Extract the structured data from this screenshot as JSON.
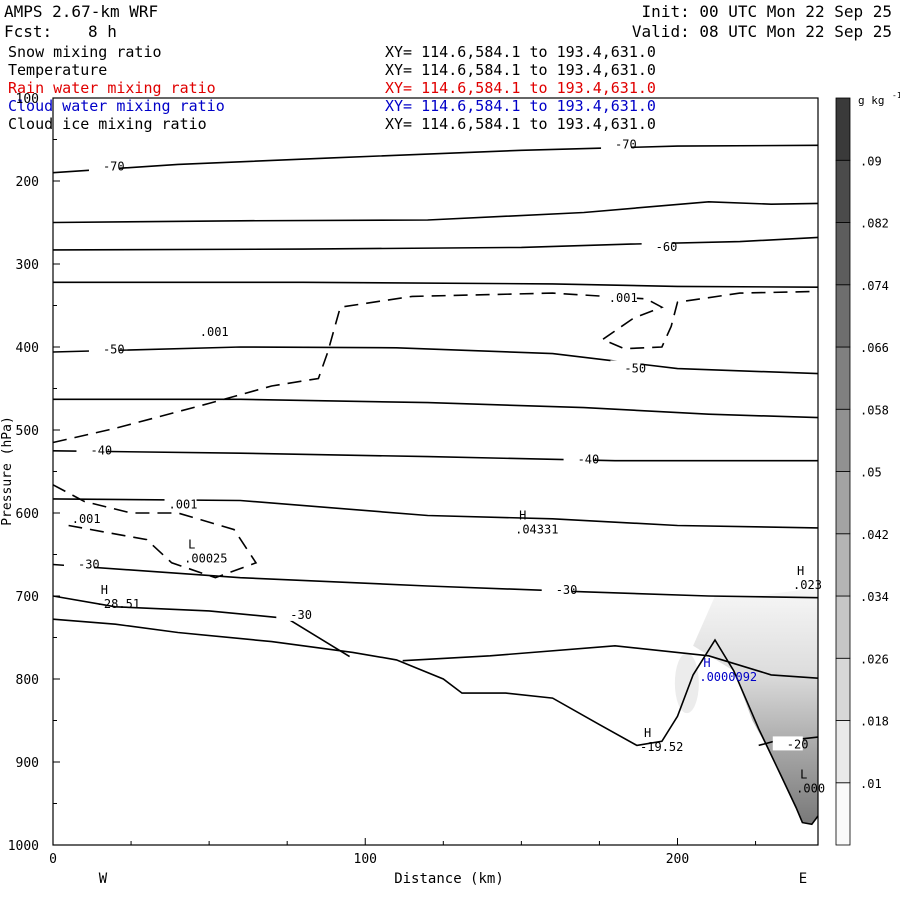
{
  "header": {
    "title": "AMPS 2.67-km WRF",
    "forecast_label": "Fcst:",
    "forecast_hours": "8 h",
    "init": "Init: 00 UTC Mon 22 Sep 25",
    "valid": "Valid: 08 UTC Mon 22 Sep 25"
  },
  "fields": [
    {
      "name": "Snow mixing ratio",
      "xy": "XY= 114.6,584.1 to 193.4,631.0",
      "color": "#000000"
    },
    {
      "name": "Temperature",
      "xy": "XY= 114.6,584.1 to 193.4,631.0",
      "color": "#000000"
    },
    {
      "name": "Rain water mixing ratio",
      "xy": "XY= 114.6,584.1 to 193.4,631.0",
      "color": "#e00000"
    },
    {
      "name": "Cloud water mixing ratio",
      "xy": "XY= 114.6,584.1 to 193.4,631.0",
      "color": "#0000c8"
    },
    {
      "name": "Cloud ice mixing ratio",
      "xy": "XY= 114.6,584.1 to 193.4,631.0",
      "color": "#000000"
    }
  ],
  "chart_data": {
    "type": "cross-section",
    "xlabel": "Distance (km)",
    "ylabel": "Pressure (hPa)",
    "xlim": [
      0,
      245
    ],
    "ylim": [
      1000,
      100
    ],
    "x_ticks": [
      0,
      100,
      200
    ],
    "y_ticks": [
      100,
      200,
      300,
      400,
      500,
      600,
      700,
      800,
      900,
      1000
    ],
    "x_end_labels": {
      "left": "W",
      "right": "E"
    },
    "colorbar": {
      "unit": "g kg-1",
      "levels": [
        ".01",
        ".018",
        ".026",
        ".034",
        ".042",
        ".05",
        ".058",
        ".066",
        ".074",
        ".082",
        ".09"
      ]
    },
    "terrain": [
      [
        0,
        728
      ],
      [
        20,
        734
      ],
      [
        40,
        744
      ],
      [
        70,
        755
      ],
      [
        96,
        768
      ],
      [
        110,
        777
      ],
      [
        125,
        800
      ],
      [
        131,
        817
      ],
      [
        145,
        817
      ],
      [
        160,
        823
      ],
      [
        175,
        855
      ],
      [
        187,
        880
      ],
      [
        195,
        875
      ],
      [
        200,
        845
      ],
      [
        205,
        795
      ],
      [
        212,
        753
      ],
      [
        218,
        790
      ],
      [
        226,
        860
      ],
      [
        233,
        915
      ],
      [
        238,
        955
      ],
      [
        240,
        973
      ],
      [
        243,
        975
      ],
      [
        245,
        965
      ]
    ],
    "temperature_contours": [
      {
        "points": [
          [
            0,
            190
          ],
          [
            40,
            180
          ],
          [
            90,
            172
          ],
          [
            150,
            163
          ],
          [
            200,
            158
          ],
          [
            245,
            157
          ]
        ],
        "label": "-70",
        "labels_at": [
          [
            16,
            184
          ],
          [
            180,
            157
          ]
        ]
      },
      {
        "points": [
          [
            0,
            250
          ],
          [
            60,
            248
          ],
          [
            120,
            247
          ],
          [
            170,
            238
          ],
          [
            210,
            225
          ],
          [
            230,
            228
          ],
          [
            245,
            227
          ]
        ],
        "label": "",
        "labels_at": []
      },
      {
        "points": [
          [
            0,
            283
          ],
          [
            80,
            282
          ],
          [
            150,
            280
          ],
          [
            185,
            276
          ],
          [
            220,
            273
          ],
          [
            245,
            268
          ]
        ],
        "label": "-60",
        "labels_at": [
          [
            193,
            281
          ]
        ]
      },
      {
        "points": [
          [
            0,
            322
          ],
          [
            80,
            322
          ],
          [
            160,
            324
          ],
          [
            200,
            327
          ],
          [
            245,
            328
          ]
        ],
        "label": "",
        "labels_at": []
      },
      {
        "points": [
          [
            0,
            406
          ],
          [
            60,
            400
          ],
          [
            110,
            401
          ],
          [
            160,
            408
          ],
          [
            200,
            426
          ],
          [
            245,
            432
          ]
        ],
        "label": "-50",
        "labels_at": [
          [
            16,
            404
          ],
          [
            183,
            427
          ]
        ]
      },
      {
        "points": [
          [
            0,
            463
          ],
          [
            60,
            463
          ],
          [
            120,
            467
          ],
          [
            170,
            473
          ],
          [
            210,
            481
          ],
          [
            245,
            485
          ]
        ],
        "label": "",
        "labels_at": []
      },
      {
        "points": [
          [
            0,
            525
          ],
          [
            60,
            528
          ],
          [
            120,
            532
          ],
          [
            180,
            537
          ],
          [
            210,
            537
          ],
          [
            245,
            537
          ]
        ],
        "label": "-40",
        "labels_at": [
          [
            12,
            526
          ],
          [
            168,
            537
          ]
        ]
      },
      {
        "points": [
          [
            0,
            583
          ],
          [
            60,
            585
          ],
          [
            120,
            603
          ],
          [
            160,
            607
          ],
          [
            200,
            615
          ],
          [
            245,
            618
          ]
        ],
        "label": "",
        "labels_at": []
      },
      {
        "points": [
          [
            0,
            662
          ],
          [
            60,
            678
          ],
          [
            120,
            688
          ],
          [
            170,
            695
          ],
          [
            210,
            700
          ],
          [
            245,
            702
          ]
        ],
        "label": "-30",
        "labels_at": [
          [
            8,
            663
          ],
          [
            161,
            694
          ]
        ]
      },
      {
        "points": [
          [
            0,
            700
          ],
          [
            20,
            713
          ],
          [
            50,
            718
          ],
          [
            75,
            727
          ],
          [
            95,
            773
          ]
        ],
        "label": "-30",
        "labels_at": [
          [
            76,
            724
          ]
        ]
      },
      {
        "points": [
          [
            112,
            778
          ],
          [
            140,
            772
          ],
          [
            180,
            760
          ],
          [
            210,
            772
          ],
          [
            230,
            795
          ],
          [
            245,
            799
          ]
        ],
        "label": "",
        "labels_at": []
      },
      {
        "points": [
          [
            226,
            880
          ],
          [
            233,
            873
          ],
          [
            240,
            872
          ],
          [
            245,
            870
          ]
        ],
        "label": "-20",
        "labels_at": [
          [
            235,
            880
          ]
        ]
      }
    ],
    "ice_contours_dashed": [
      {
        "label": ".001",
        "labels_at": [
          [
            47,
            383
          ],
          [
            178,
            342
          ]
        ],
        "points": [
          [
            0,
            515
          ],
          [
            20,
            498
          ],
          [
            50,
            468
          ],
          [
            70,
            447
          ],
          [
            85,
            438
          ],
          [
            88,
            406
          ],
          [
            92,
            352
          ],
          [
            115,
            339
          ],
          [
            160,
            335
          ],
          [
            190,
            342
          ],
          [
            195,
            352
          ],
          [
            186,
            365
          ],
          [
            176,
            391
          ],
          [
            183,
            402
          ],
          [
            195,
            400
          ],
          [
            198,
            375
          ],
          [
            200,
            346
          ],
          [
            220,
            335
          ],
          [
            245,
            333
          ]
        ]
      },
      {
        "label": ".001",
        "labels_at": [
          [
            37,
            591
          ]
        ],
        "points": [
          [
            0,
            566
          ],
          [
            10,
            586
          ],
          [
            25,
            600
          ],
          [
            40,
            600
          ],
          [
            58,
            620
          ],
          [
            65,
            660
          ],
          [
            52,
            678
          ],
          [
            38,
            660
          ],
          [
            30,
            632
          ],
          [
            18,
            624
          ],
          [
            5,
            615
          ]
        ]
      }
    ],
    "extrema": [
      {
        "type": "H",
        "value": "-28.51",
        "x": 14,
        "y": 700,
        "color": "#000000"
      },
      {
        "type": "L",
        "value": ".00025",
        "x": 42,
        "y": 645,
        "color": "#000000"
      },
      {
        "type": "H",
        "value": ".04331",
        "x": 148,
        "y": 610,
        "color": "#000000"
      },
      {
        "type": "H",
        "value": ".023",
        "x": 237,
        "y": 677,
        "color": "#000000"
      },
      {
        "type": "H",
        "value": ".0000092",
        "x": 207,
        "y": 788,
        "color": "#0000c8"
      },
      {
        "type": "H",
        "value": "-19.52",
        "x": 188,
        "y": 872,
        "color": "#000000"
      },
      {
        "type": "L",
        "value": ".000",
        "x": 238,
        "y": 922,
        "color": "#000000"
      }
    ],
    "mixing_ratio_shading": {
      "unit": "g kg-1",
      "region": "valley east of the ridge, x 200-245 km, 700-975 hPa",
      "max_level": ".09"
    }
  }
}
